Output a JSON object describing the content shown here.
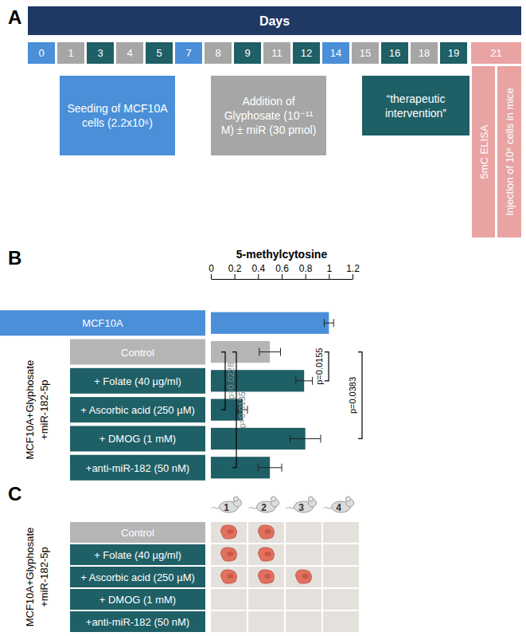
{
  "panel_labels": [
    "A",
    "B",
    "C"
  ],
  "group_label": [
    "MCF10A+Glyphosate",
    "+miR-182-5p"
  ],
  "panel_a": {
    "header": "Days",
    "days": [
      0,
      1,
      3,
      4,
      5,
      7,
      8,
      9,
      11,
      12,
      14,
      15,
      16,
      18,
      19,
      21
    ],
    "day_colors": [
      "#4a8fd8",
      "#a6a6a6",
      "#1f5f66",
      "#a6a6a6",
      "#1f5f66",
      "#4a8fd8",
      "#a6a6a6",
      "#1f5f66",
      "#a6a6a6",
      "#1f5f66",
      "#4a8fd8",
      "#a6a6a6",
      "#1f5f66",
      "#a6a6a6",
      "#1f5f66",
      "#e9a3a3"
    ],
    "steps": [
      {
        "lines": [
          "Seeding of MCF10A",
          "cells (2.2x10⁶)"
        ],
        "color": "#4a8fd8"
      },
      {
        "lines": [
          "Addition of",
          "Glyphosate (10⁻¹¹",
          "M) ± miR (30 pmol)"
        ],
        "color": "#a6a6a6"
      },
      {
        "lines": [
          "“therapeutic",
          "intervention”"
        ],
        "color": "#1f5f66"
      },
      {
        "lines": [
          "5mC ELISA"
        ],
        "color": "#e9a3a3"
      },
      {
        "lines": [
          "Injection of 10⁶ cells in mice"
        ],
        "color": "#e9a3a3"
      }
    ]
  },
  "chart_data": {
    "type": "bar",
    "orientation": "horizontal",
    "title": "5-methylcytosine",
    "categories": [
      "MCF10A",
      "Control",
      "+ Folate (40 µg/ml)",
      "+ Ascorbic acid (250 µM)",
      "+ DMOG (1 mM)",
      "+anti-miR-182 (50 nM)"
    ],
    "values": [
      1.0,
      0.5,
      0.79,
      0.27,
      0.8,
      0.5
    ],
    "errors": [
      0.04,
      0.09,
      0.07,
      0.04,
      0.13,
      0.1
    ],
    "colors": [
      "#4a8fd8",
      "#b5b5b5",
      "#1f5f66",
      "#1f5f66",
      "#1f5f66",
      "#1f5f66"
    ],
    "xlim": [
      0,
      1.2
    ],
    "xticks": [
      0,
      0.2,
      0.4,
      0.6,
      0.8,
      1,
      1.2
    ],
    "annotations": [
      {
        "between": [
          "Control",
          "+ Folate (40 µg/ml)"
        ],
        "text": "p=0.0155"
      },
      {
        "between": [
          "Control",
          "+ DMOG (1 mM)"
        ],
        "text": "p=0.0383"
      },
      {
        "between": [
          "Control",
          "+ Ascorbic acid (250 µM)"
        ],
        "text": "p=0.0228"
      },
      {
        "between": [
          "Control",
          "+anti-miR-182 (50 nM)"
        ],
        "text": "p=0.0135"
      }
    ]
  },
  "panel_c": {
    "mice": [
      1,
      2,
      3,
      4
    ],
    "rows": [
      "Control",
      "+ Folate (40 µg/ml)",
      "+ Ascorbic acid (250 µM)",
      "+ DMOG (1 mM)",
      "+anti-miR-182 (50 nM)"
    ],
    "row_colors": [
      "#b5b5b5",
      "#1f5f66",
      "#1f5f66",
      "#1f5f66",
      "#1f5f66"
    ],
    "tumors": [
      [
        true,
        true,
        false,
        false
      ],
      [
        true,
        true,
        false,
        false
      ],
      [
        true,
        true,
        true,
        false
      ],
      [
        false,
        false,
        false,
        false
      ],
      [
        false,
        false,
        false,
        false
      ]
    ]
  }
}
